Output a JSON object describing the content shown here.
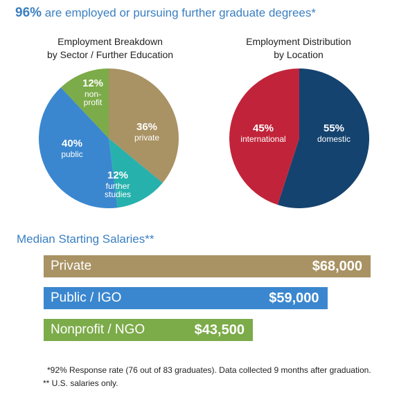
{
  "headline": {
    "percent": "96%",
    "text": " are employed or pursuing further graduate degrees*"
  },
  "chart_data": [
    {
      "type": "pie",
      "title_lines": [
        "Employment Breakdown",
        "by Sector / Further Education"
      ],
      "slices": [
        {
          "pct_label": "36%",
          "name_lines": [
            "private"
          ],
          "value": 36,
          "color": "#a99263"
        },
        {
          "pct_label": "12%",
          "name_lines": [
            "further",
            "studies"
          ],
          "value": 12,
          "color": "#27b1ad"
        },
        {
          "pct_label": "40%",
          "name_lines": [
            "public"
          ],
          "value": 40,
          "color": "#3a87cf"
        },
        {
          "pct_label": "12%",
          "name_lines": [
            "non-",
            "profit"
          ],
          "value": 12,
          "color": "#7cab49"
        }
      ]
    },
    {
      "type": "pie",
      "title_lines": [
        "Employment Distribution",
        "by Location"
      ],
      "slices": [
        {
          "pct_label": "55%",
          "name_lines": [
            "domestic"
          ],
          "value": 55,
          "color": "#14436f"
        },
        {
          "pct_label": "45%",
          "name_lines": [
            "international"
          ],
          "value": 45,
          "color": "#c1243a"
        }
      ]
    },
    {
      "type": "bar",
      "title": "Median Starting Salaries**",
      "categories": [
        "Private",
        "Public / IGO",
        "Nonprofit / NGO"
      ],
      "values": [
        68000,
        59000,
        43500
      ],
      "value_labels": [
        "$68,000",
        "$59,000",
        "$43,500"
      ],
      "colors": [
        "#a99263",
        "#3a87cf",
        "#7cab49"
      ]
    }
  ],
  "footnotes": [
    "*92% Response rate (76 out of 83 graduates). Data collected 9 months after graduation.",
    "** U.S. salaries only."
  ]
}
